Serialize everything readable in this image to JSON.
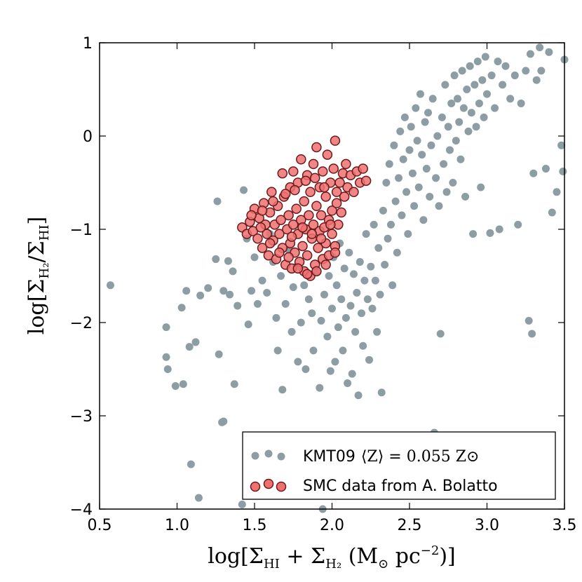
{
  "chart_data": {
    "type": "scatter",
    "xlabel": "log[Σ_HI + Σ_H2 (M⊙ pc^-2)]",
    "ylabel": "log[Σ_H2/Σ_HI]",
    "xlim": [
      0.5,
      3.5
    ],
    "ylim": [
      -4,
      1
    ],
    "xticks": [
      0.5,
      1.0,
      1.5,
      2.0,
      2.5,
      3.0,
      3.5
    ],
    "xtick_labels": [
      "0.5",
      "1.0",
      "1.5",
      "2.0",
      "2.5",
      "3.0",
      "3.5"
    ],
    "yticks": [
      -4,
      -3,
      -2,
      -1,
      0,
      1
    ],
    "ytick_labels": [
      "−4",
      "−3",
      "−2",
      "−1",
      "0",
      "1"
    ],
    "legend_position": "bottom-right",
    "series": [
      {
        "name": "KMT09 ⟨Z⟩ = 0.055 Z⊙",
        "legend_prefix": "KMT09",
        "legend_math": "⟨Z⟩ = 0.055 Z⊙",
        "color": "#8c9ea3",
        "edge": "none",
        "points": [
          [
            0.57,
            -1.6
          ],
          [
            0.93,
            -2.05
          ],
          [
            0.93,
            -2.37
          ],
          [
            0.94,
            -2.5
          ],
          [
            0.99,
            -2.68
          ],
          [
            1.03,
            -1.84
          ],
          [
            1.04,
            -2.66
          ],
          [
            1.06,
            -1.66
          ],
          [
            1.08,
            -2.26
          ],
          [
            1.09,
            -3.52
          ],
          [
            1.12,
            -2.21
          ],
          [
            1.14,
            -3.88
          ],
          [
            1.15,
            -1.71
          ],
          [
            1.2,
            -1.63
          ],
          [
            1.25,
            -1.32
          ],
          [
            1.26,
            -0.7
          ],
          [
            1.27,
            -2.34
          ],
          [
            1.29,
            -3.07
          ],
          [
            1.3,
            -3.06
          ],
          [
            1.3,
            -1.66
          ],
          [
            1.33,
            -1.34
          ],
          [
            1.34,
            -1.7
          ],
          [
            1.36,
            -1.45
          ],
          [
            1.37,
            -2.66
          ],
          [
            1.39,
            -1.82
          ],
          [
            1.42,
            -3.95
          ],
          [
            1.43,
            -0.58
          ],
          [
            1.45,
            -1.1
          ],
          [
            1.46,
            -2.02
          ],
          [
            1.48,
            -1.66
          ],
          [
            1.5,
            -1.3
          ],
          [
            1.52,
            -1.8
          ],
          [
            1.55,
            -1.55
          ],
          [
            1.58,
            -1.68
          ],
          [
            1.6,
            -1.05
          ],
          [
            1.62,
            -1.35
          ],
          [
            1.64,
            -1.95
          ],
          [
            1.65,
            -2.3
          ],
          [
            1.67,
            -1.5
          ],
          [
            1.68,
            -2.72
          ],
          [
            1.7,
            -1.8
          ],
          [
            1.72,
            -1.22
          ],
          [
            1.74,
            -2.1
          ],
          [
            1.75,
            -1.62
          ],
          [
            1.77,
            -1.4
          ],
          [
            1.78,
            -2.42
          ],
          [
            1.8,
            -2.0
          ],
          [
            1.82,
            -1.6
          ],
          [
            1.83,
            -2.5
          ],
          [
            1.85,
            -1.75
          ],
          [
            1.87,
            -1.9
          ],
          [
            1.88,
            -2.3
          ],
          [
            1.9,
            -1.45
          ],
          [
            1.92,
            -2.7
          ],
          [
            1.93,
            -1.98
          ],
          [
            1.94,
            -4.0
          ],
          [
            1.95,
            -1.7
          ],
          [
            1.97,
            -2.15
          ],
          [
            1.98,
            -1.5
          ],
          [
            1.99,
            -2.52
          ],
          [
            2.0,
            -1.85
          ],
          [
            2.01,
            -1.3
          ],
          [
            2.02,
            -2.42
          ],
          [
            2.03,
            -1.6
          ],
          [
            2.04,
            -2.05
          ],
          [
            2.05,
            -1.15
          ],
          [
            2.06,
            -1.75
          ],
          [
            2.07,
            -2.3
          ],
          [
            2.08,
            -1.42
          ],
          [
            2.09,
            -1.95
          ],
          [
            2.1,
            -2.65
          ],
          [
            2.11,
            -1.25
          ],
          [
            2.12,
            -1.82
          ],
          [
            2.13,
            -2.55
          ],
          [
            2.14,
            -1.48
          ],
          [
            2.15,
            -2.1
          ],
          [
            2.16,
            -1.68
          ],
          [
            2.17,
            -2.78
          ],
          [
            2.18,
            -1.35
          ],
          [
            2.19,
            -1.9
          ],
          [
            2.2,
            -2.25
          ],
          [
            2.21,
            -1.55
          ],
          [
            2.22,
            -1.05
          ],
          [
            2.23,
            -1.75
          ],
          [
            2.24,
            -2.4
          ],
          [
            2.25,
            -1.4
          ],
          [
            2.26,
            -1.85
          ],
          [
            2.27,
            -0.95
          ],
          [
            2.28,
            -1.55
          ],
          [
            2.29,
            -2.1
          ],
          [
            2.3,
            -1.2
          ],
          [
            2.31,
            -1.7
          ],
          [
            2.32,
            -2.75
          ],
          [
            2.33,
            -0.8
          ],
          [
            2.34,
            -1.38
          ],
          [
            2.35,
            -0.5
          ],
          [
            2.36,
            -1.1
          ],
          [
            2.37,
            -0.3
          ],
          [
            2.38,
            -0.95
          ],
          [
            2.39,
            -1.6
          ],
          [
            2.4,
            -0.1
          ],
          [
            2.41,
            -0.7
          ],
          [
            2.42,
            -1.25
          ],
          [
            2.43,
            -0.45
          ],
          [
            2.44,
            0.05
          ],
          [
            2.45,
            -0.85
          ],
          [
            2.46,
            -0.25
          ],
          [
            2.47,
            0.2
          ],
          [
            2.48,
            -0.6
          ],
          [
            2.49,
            -1.05
          ],
          [
            2.5,
            -0.15
          ],
          [
            2.51,
            0.1
          ],
          [
            2.52,
            -0.4
          ],
          [
            2.53,
            -0.75
          ],
          [
            2.54,
            0.3
          ],
          [
            2.55,
            -0.05
          ],
          [
            2.56,
            -0.55
          ],
          [
            2.57,
            0.45
          ],
          [
            2.58,
            -0.2
          ],
          [
            2.59,
            -0.9
          ],
          [
            2.6,
            0.15
          ],
          [
            2.61,
            -0.35
          ],
          [
            2.62,
            0.25
          ],
          [
            2.63,
            -0.65
          ],
          [
            2.64,
            -0.1
          ],
          [
            2.65,
            0.4
          ],
          [
            2.66,
            -3.18
          ],
          [
            2.67,
            -0.45
          ],
          [
            2.68,
            0.0
          ],
          [
            2.69,
            -0.75
          ],
          [
            2.7,
            -2.12
          ],
          [
            2.71,
            0.2
          ],
          [
            2.72,
            -0.3
          ],
          [
            2.73,
            0.55
          ],
          [
            2.74,
            -0.6
          ],
          [
            2.75,
            0.1
          ],
          [
            2.76,
            -0.15
          ],
          [
            2.77,
            0.35
          ],
          [
            2.78,
            -0.5
          ],
          [
            2.79,
            0.65
          ],
          [
            2.8,
            -0.05
          ],
          [
            2.81,
            0.4
          ],
          [
            2.82,
            0.15
          ],
          [
            2.83,
            -0.25
          ],
          [
            2.84,
            0.7
          ],
          [
            2.85,
            0.3
          ],
          [
            2.86,
            -0.65
          ],
          [
            2.87,
            0.5
          ],
          [
            2.88,
            0.05
          ],
          [
            2.89,
            0.75
          ],
          [
            2.9,
            0.25
          ],
          [
            2.91,
            -1.05
          ],
          [
            2.92,
            0.55
          ],
          [
            2.93,
            0.1
          ],
          [
            2.94,
            0.8
          ],
          [
            2.95,
            0.35
          ],
          [
            2.96,
            -0.55
          ],
          [
            2.97,
            0.6
          ],
          [
            2.98,
            0.2
          ],
          [
            2.99,
            0.85
          ],
          [
            3.0,
            0.45
          ],
          [
            3.02,
            -1.04
          ],
          [
            3.03,
            0.65
          ],
          [
            3.05,
            0.3
          ],
          [
            3.07,
            0.8
          ],
          [
            3.08,
            -1.0
          ],
          [
            3.1,
            0.55
          ],
          [
            3.12,
            0.75
          ],
          [
            3.15,
            0.4
          ],
          [
            3.18,
            0.65
          ],
          [
            3.2,
            -0.95
          ],
          [
            3.22,
            0.35
          ],
          [
            3.25,
            0.7
          ],
          [
            3.27,
            -1.98
          ],
          [
            3.28,
            0.88
          ],
          [
            3.29,
            -2.12
          ],
          [
            3.3,
            -0.4
          ],
          [
            3.32,
            0.6
          ],
          [
            3.34,
            0.95
          ],
          [
            3.35,
            0.7
          ],
          [
            3.38,
            -0.35
          ],
          [
            3.4,
            0.9
          ],
          [
            3.42,
            -0.82
          ],
          [
            3.45,
            -0.6
          ],
          [
            3.48,
            -0.1
          ],
          [
            3.49,
            -0.38
          ],
          [
            3.5,
            0.82
          ]
        ]
      },
      {
        "name": "SMC data from A. Bolatto",
        "legend_label": "SMC data from A. Bolatto",
        "color": "#f07070",
        "edge": "#6a1a1a",
        "points": [
          [
            1.42,
            -0.98
          ],
          [
            1.45,
            -1.05
          ],
          [
            1.47,
            -0.92
          ],
          [
            1.49,
            -1.02
          ],
          [
            1.5,
            -0.78
          ],
          [
            1.52,
            -1.1
          ],
          [
            1.53,
            -0.88
          ],
          [
            1.55,
            -1.2
          ],
          [
            1.56,
            -0.72
          ],
          [
            1.57,
            -0.95
          ],
          [
            1.58,
            -1.05
          ],
          [
            1.59,
            -1.28
          ],
          [
            1.6,
            -0.82
          ],
          [
            1.61,
            -0.6
          ],
          [
            1.62,
            -1.12
          ],
          [
            1.63,
            -0.95
          ],
          [
            1.64,
            -1.32
          ],
          [
            1.65,
            -0.75
          ],
          [
            1.66,
            -1.05
          ],
          [
            1.67,
            -0.9
          ],
          [
            1.68,
            -1.2
          ],
          [
            1.68,
            -0.4
          ],
          [
            1.69,
            -0.65
          ],
          [
            1.7,
            -1.38
          ],
          [
            1.71,
            -1.0
          ],
          [
            1.72,
            -0.85
          ],
          [
            1.73,
            -1.15
          ],
          [
            1.73,
            -0.55
          ],
          [
            1.74,
            -1.42
          ],
          [
            1.75,
            -0.95
          ],
          [
            1.75,
            -0.38
          ],
          [
            1.76,
            -1.25
          ],
          [
            1.77,
            -0.78
          ],
          [
            1.78,
            -1.05
          ],
          [
            1.78,
            -0.5
          ],
          [
            1.79,
            -1.35
          ],
          [
            1.8,
            -0.9
          ],
          [
            1.8,
            -0.25
          ],
          [
            1.81,
            -1.18
          ],
          [
            1.82,
            -0.7
          ],
          [
            1.82,
            -1.45
          ],
          [
            1.83,
            -1.0
          ],
          [
            1.84,
            -0.42
          ],
          [
            1.84,
            -1.28
          ],
          [
            1.85,
            -0.85
          ],
          [
            1.86,
            -1.5
          ],
          [
            1.86,
            -0.6
          ],
          [
            1.87,
            -1.1
          ],
          [
            1.88,
            -0.3
          ],
          [
            1.88,
            -0.95
          ],
          [
            1.89,
            -1.38
          ],
          [
            1.9,
            -0.75
          ],
          [
            1.9,
            -0.12
          ],
          [
            1.91,
            -1.2
          ],
          [
            1.92,
            -0.55
          ],
          [
            1.92,
            -1.02
          ],
          [
            1.93,
            -0.85
          ],
          [
            1.94,
            -1.32
          ],
          [
            1.94,
            -0.38
          ],
          [
            1.95,
            -0.98
          ],
          [
            1.96,
            -0.65
          ],
          [
            1.96,
            -1.15
          ],
          [
            1.97,
            -0.2
          ],
          [
            1.98,
            -0.9
          ],
          [
            1.98,
            -1.28
          ],
          [
            1.99,
            -0.5
          ],
          [
            2.0,
            -1.05
          ],
          [
            2.0,
            -0.8
          ],
          [
            2.01,
            -0.35
          ],
          [
            2.02,
            -1.18
          ],
          [
            2.02,
            -0.05
          ],
          [
            2.03,
            -0.72
          ],
          [
            2.04,
            -0.95
          ],
          [
            2.05,
            -0.5
          ],
          [
            2.06,
            -0.82
          ],
          [
            2.07,
            -0.4
          ],
          [
            2.08,
            -0.65
          ],
          [
            2.09,
            -0.3
          ],
          [
            2.1,
            -0.55
          ],
          [
            2.12,
            -0.42
          ],
          [
            2.14,
            -0.6
          ],
          [
            2.16,
            -0.38
          ],
          [
            2.18,
            -0.5
          ],
          [
            2.2,
            -0.35
          ],
          [
            2.22,
            -0.48
          ],
          [
            1.48,
            -0.85
          ],
          [
            1.54,
            -0.98
          ],
          [
            1.6,
            -1.15
          ],
          [
            1.66,
            -1.25
          ],
          [
            1.72,
            -1.3
          ],
          [
            1.78,
            -1.42
          ],
          [
            1.84,
            -1.48
          ],
          [
            1.9,
            -1.45
          ],
          [
            1.96,
            -1.38
          ],
          [
            2.02,
            -1.25
          ],
          [
            1.55,
            -0.8
          ],
          [
            1.62,
            -0.7
          ],
          [
            1.7,
            -0.62
          ],
          [
            1.76,
            -0.58
          ],
          [
            1.83,
            -0.48
          ],
          [
            1.89,
            -0.45
          ],
          [
            1.95,
            -0.55
          ],
          [
            2.03,
            -0.6
          ],
          [
            1.74,
            -1.08
          ],
          [
            1.81,
            -0.98
          ],
          [
            1.87,
            -1.05
          ],
          [
            1.93,
            -1.1
          ],
          [
            1.99,
            -0.95
          ]
        ]
      }
    ]
  }
}
